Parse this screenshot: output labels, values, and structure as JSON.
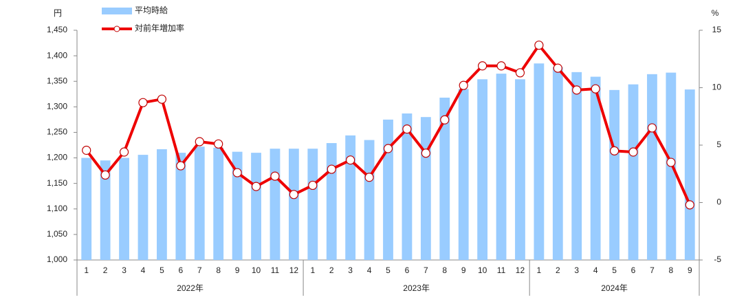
{
  "chart_data": {
    "type": "bar-line",
    "y_label": "円",
    "y2_label": "%",
    "categories": [
      "1",
      "2",
      "3",
      "4",
      "5",
      "6",
      "7",
      "8",
      "9",
      "10",
      "11",
      "12",
      "1",
      "2",
      "3",
      "4",
      "5",
      "6",
      "7",
      "8",
      "9",
      "10",
      "11",
      "12",
      "1",
      "2",
      "3",
      "4",
      "5",
      "6",
      "7",
      "8",
      "9"
    ],
    "groups": [
      {
        "label": "2022年",
        "count": 12
      },
      {
        "label": "2023年",
        "count": 12
      },
      {
        "label": "2024年",
        "count": 9
      }
    ],
    "series": [
      {
        "name": "平均時給",
        "type": "bar",
        "color": "#99ccff",
        "values": [
          1200,
          1195,
          1200,
          1206,
          1217,
          1210,
          1222,
          1220,
          1212,
          1210,
          1218,
          1218,
          1218,
          1229,
          1244,
          1235,
          1275,
          1287,
          1280,
          1318,
          1335,
          1354,
          1365,
          1354,
          1385,
          1378,
          1368,
          1359,
          1333,
          1344,
          1364,
          1367,
          1334
        ]
      },
      {
        "name": "対前年増加率",
        "type": "line",
        "color": "#ee0000",
        "axis": "y2",
        "values": [
          4.55,
          2.4,
          4.4,
          8.7,
          9.0,
          3.2,
          5.3,
          5.1,
          2.6,
          1.4,
          2.3,
          0.7,
          1.5,
          2.9,
          3.7,
          2.2,
          4.7,
          6.4,
          4.3,
          7.2,
          10.2,
          11.9,
          11.9,
          11.3,
          13.7,
          11.7,
          9.8,
          9.9,
          4.5,
          4.4,
          6.5,
          3.5,
          -0.2
        ]
      }
    ],
    "ylim": [
      1000,
      1450
    ],
    "yticks": [
      {
        "value": 1000,
        "label": "1,000"
      },
      {
        "value": 1050,
        "label": "1,050"
      },
      {
        "value": 1100,
        "label": "1,100"
      },
      {
        "value": 1150,
        "label": "1,150"
      },
      {
        "value": 1200,
        "label": "1,200"
      },
      {
        "value": 1250,
        "label": "1,250"
      },
      {
        "value": 1300,
        "label": "1,300"
      },
      {
        "value": 1350,
        "label": "1,350"
      },
      {
        "value": 1400,
        "label": "1,400"
      },
      {
        "value": 1450,
        "label": "1,450"
      }
    ],
    "y2lim": [
      -5,
      15
    ],
    "y2ticks": [
      -5,
      0,
      5,
      10,
      15
    ],
    "grid": false,
    "legend": "top-left"
  }
}
